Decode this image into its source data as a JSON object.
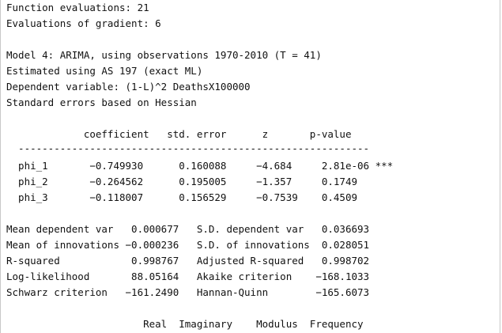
{
  "header": {
    "func_evals": "Function evaluations: 21",
    "grad_evals": "Evaluations of gradient: 6"
  },
  "model": {
    "title": "Model 4: ARIMA, using observations 1970-2010 (T = 41)",
    "estimated": "Estimated using AS 197 (exact ML)",
    "dependent": "Dependent variable: (1-L)^2 DeathsX100000",
    "stderr_basis": "Standard errors based on Hessian"
  },
  "coef_table": {
    "header_line": "             coefficient   std. error      z       p-value",
    "rule_line": "  -----------------------------------------------------------",
    "rows": [
      "  phi_1       −0.749930      0.160088     −4.684     2.81e-06 ***",
      "  phi_2       −0.264562      0.195005     −1.357     0.1749",
      "  phi_3       −0.118007      0.156529     −0.7539    0.4509"
    ]
  },
  "stats": [
    "Mean dependent var   0.000677   S.D. dependent var   0.036693",
    "Mean of innovations −0.000236   S.D. of innovations  0.028051",
    "R-squared            0.998767   Adjusted R-squared   0.998702",
    "Log-likelihood       88.05164   Akaike criterion    −168.1033",
    "Schwarz criterion   −161.2490   Hannan-Quinn        −165.6073"
  ],
  "roots_header": "                       Real  Imaginary    Modulus  Frequency"
}
